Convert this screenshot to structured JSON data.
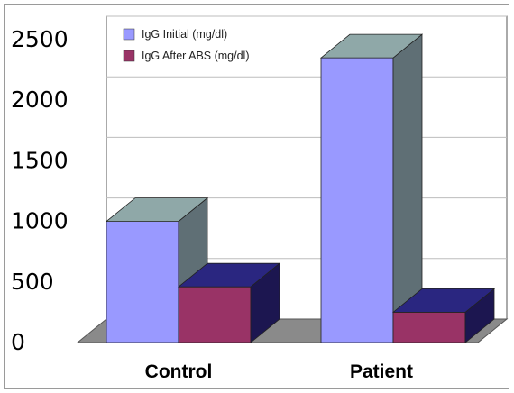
{
  "chart_data": {
    "type": "bar",
    "categories": [
      "Control",
      "Patient"
    ],
    "series": [
      {
        "name": "IgG Initial (mg/dl)",
        "values": [
          1000,
          2350
        ],
        "color": "#9999ff"
      },
      {
        "name": "IgG After ABS (mg/dl)",
        "values": [
          460,
          250
        ],
        "color": "#993366"
      }
    ],
    "yticks": [
      0,
      500,
      1000,
      1500,
      2000,
      2500
    ],
    "ylim": [
      0,
      2500
    ],
    "grid": true,
    "legend_position": "top-left",
    "three_d": true
  }
}
